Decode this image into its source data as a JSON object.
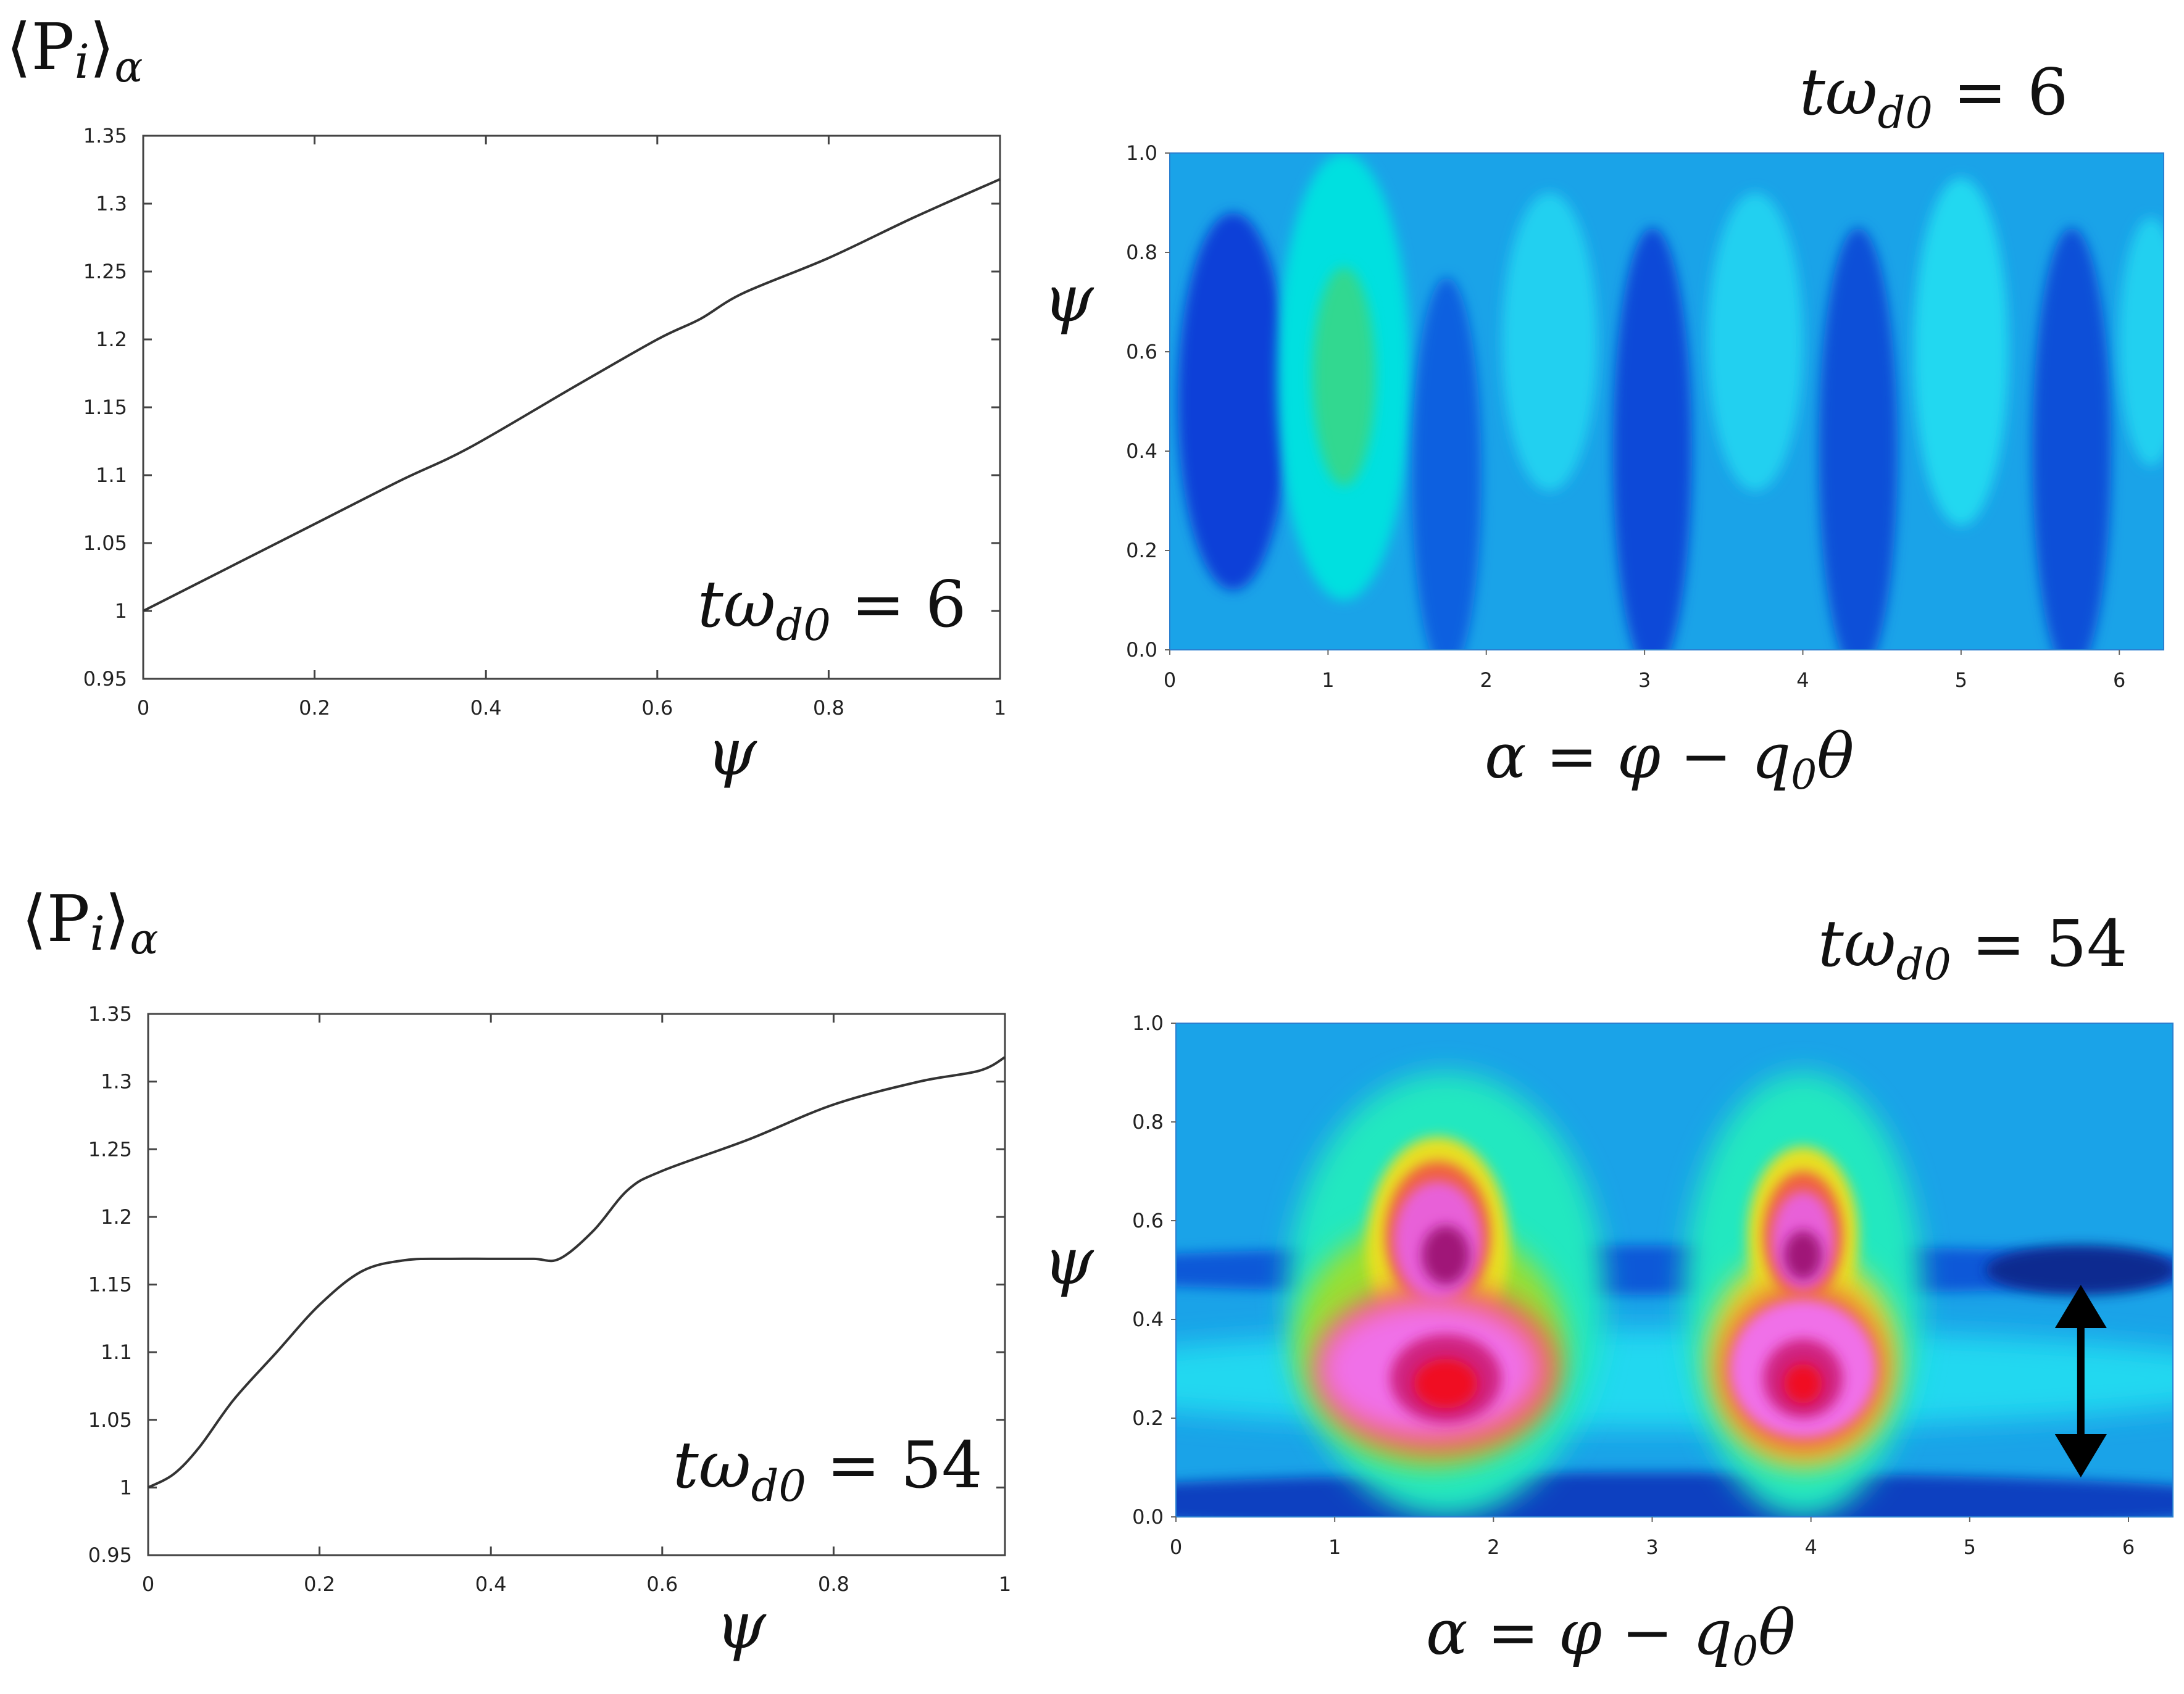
{
  "top_left": {
    "ylabel": "⟨P",
    "ylabel_sub": "i",
    "ylabel_end": "⟩",
    "ylabel_sub2": "α",
    "xlabel": "ψ",
    "annotation_main": "tω",
    "annotation_sub": "d0",
    "annotation_rest": " = 6"
  },
  "top_right": {
    "title_main": "tω",
    "title_sub": "d0",
    "title_rest": " = 6",
    "ylabel": "ψ",
    "xlabel_a": "α = φ − q",
    "xlabel_sub": "0",
    "xlabel_b": "θ"
  },
  "bottom_left": {
    "ylabel": "⟨P",
    "ylabel_sub": "i",
    "ylabel_end": "⟩",
    "ylabel_sub2": "α",
    "xlabel": "ψ",
    "annotation_main": "tω",
    "annotation_sub": "d0",
    "annotation_rest": " = 54"
  },
  "bottom_right": {
    "title_main": "tω",
    "title_sub": "d0",
    "title_rest": " = 54",
    "ylabel": "ψ",
    "xlabel_a": "α = φ − q",
    "xlabel_sub": "0",
    "xlabel_b": "θ"
  },
  "colors": {
    "line": "#333333",
    "axis": "#444444",
    "arrow": "#000000"
  },
  "chart_data": [
    {
      "type": "line",
      "id": "pressure-t6",
      "xlabel": "ψ",
      "ylabel": "⟨P_i⟩_α",
      "xlim": [
        0,
        1
      ],
      "ylim": [
        0.95,
        1.35
      ],
      "xticks": [
        0,
        0.2,
        0.4,
        0.6,
        0.8,
        1
      ],
      "xtick_labels": [
        "0",
        "0.2",
        "0.4",
        "0.6",
        "0.8",
        "1"
      ],
      "yticks": [
        0.95,
        1,
        1.05,
        1.1,
        1.15,
        1.2,
        1.25,
        1.3,
        1.35
      ],
      "ytick_labels": [
        "0.95",
        "1",
        "1.05",
        "1.1",
        "1.15",
        "1.2",
        "1.25",
        "1.3",
        "1.35"
      ],
      "x": [
        0,
        0.1,
        0.2,
        0.3,
        0.38,
        0.5,
        0.6,
        0.65,
        0.7,
        0.8,
        0.9,
        1.0
      ],
      "y": [
        1.0,
        1.032,
        1.064,
        1.096,
        1.12,
        1.164,
        1.2,
        1.215,
        1.234,
        1.26,
        1.29,
        1.318
      ],
      "annotation": "tω_d0 = 6"
    },
    {
      "type": "heatmap",
      "id": "contour-t6",
      "title": "tω_d0 = 6",
      "xlabel": "α = φ − q_0θ",
      "ylabel": "ψ",
      "xlim": [
        0,
        6.28
      ],
      "ylim": [
        0,
        1
      ],
      "xticks": [
        0,
        1,
        2,
        3,
        4,
        5,
        6
      ],
      "xtick_labels": [
        "0",
        "1",
        "2",
        "3",
        "4",
        "5",
        "6"
      ],
      "yticks": [
        0,
        0.2,
        0.4,
        0.6,
        0.8,
        1.0
      ],
      "ytick_labels": [
        "0.0",
        "0.2",
        "0.4",
        "0.6",
        "0.8",
        "1.0"
      ],
      "background": "#1aa3e8",
      "blobs": [
        {
          "alpha": 0.4,
          "psi": 0.5,
          "ra": 0.35,
          "rpsi": 0.38,
          "color": "#0a3fd8"
        },
        {
          "alpha": 1.1,
          "psi": 0.55,
          "ra": 0.42,
          "rpsi": 0.45,
          "color": "#00e0e0"
        },
        {
          "alpha": 1.1,
          "psi": 0.55,
          "ra": 0.2,
          "rpsi": 0.22,
          "color": "#30d890"
        },
        {
          "alpha": 1.75,
          "psi": 0.35,
          "ra": 0.22,
          "rpsi": 0.4,
          "color": "#1060e0"
        },
        {
          "alpha": 2.4,
          "psi": 0.62,
          "ra": 0.3,
          "rpsi": 0.3,
          "color": "#20d0f0"
        },
        {
          "alpha": 3.05,
          "psi": 0.4,
          "ra": 0.25,
          "rpsi": 0.45,
          "color": "#0a48d8"
        },
        {
          "alpha": 3.7,
          "psi": 0.62,
          "ra": 0.3,
          "rpsi": 0.3,
          "color": "#20d0f0"
        },
        {
          "alpha": 4.35,
          "psi": 0.4,
          "ra": 0.25,
          "rpsi": 0.45,
          "color": "#0a50d8"
        },
        {
          "alpha": 5.0,
          "psi": 0.6,
          "ra": 0.3,
          "rpsi": 0.35,
          "color": "#20d8f0"
        },
        {
          "alpha": 5.7,
          "psi": 0.4,
          "ra": 0.25,
          "rpsi": 0.45,
          "color": "#0a50d8"
        },
        {
          "alpha": 6.2,
          "psi": 0.62,
          "ra": 0.2,
          "rpsi": 0.25,
          "color": "#20d0f0"
        }
      ]
    },
    {
      "type": "line",
      "id": "pressure-t54",
      "xlabel": "ψ",
      "ylabel": "⟨P_i⟩_α",
      "xlim": [
        0,
        1
      ],
      "ylim": [
        0.95,
        1.35
      ],
      "xticks": [
        0,
        0.2,
        0.4,
        0.6,
        0.8,
        1
      ],
      "xtick_labels": [
        "0",
        "0.2",
        "0.4",
        "0.6",
        "0.8",
        "1"
      ],
      "yticks": [
        0.95,
        1,
        1.05,
        1.1,
        1.15,
        1.2,
        1.25,
        1.3,
        1.35
      ],
      "ytick_labels": [
        "0.95",
        "1",
        "1.05",
        "1.1",
        "1.15",
        "1.2",
        "1.25",
        "1.3",
        "1.35"
      ],
      "x": [
        0,
        0.03,
        0.06,
        0.1,
        0.15,
        0.2,
        0.25,
        0.3,
        0.35,
        0.4,
        0.45,
        0.48,
        0.52,
        0.56,
        0.6,
        0.7,
        0.8,
        0.9,
        0.97,
        1.0
      ],
      "y": [
        1.0,
        1.01,
        1.03,
        1.065,
        1.1,
        1.135,
        1.16,
        1.168,
        1.169,
        1.169,
        1.169,
        1.169,
        1.19,
        1.22,
        1.234,
        1.257,
        1.283,
        1.3,
        1.308,
        1.318
      ],
      "annotation": "tω_d0 = 54"
    },
    {
      "type": "heatmap",
      "id": "contour-t54",
      "title": "tω_d0 = 54",
      "xlabel": "α = φ − q_0θ",
      "ylabel": "ψ",
      "xlim": [
        0,
        6.28
      ],
      "ylim": [
        0,
        1
      ],
      "xticks": [
        0,
        1,
        2,
        3,
        4,
        5,
        6
      ],
      "xtick_labels": [
        "0",
        "1",
        "2",
        "3",
        "4",
        "5",
        "6"
      ],
      "yticks": [
        0,
        0.2,
        0.4,
        0.6,
        0.8,
        1.0
      ],
      "ytick_labels": [
        "0.0",
        "0.2",
        "0.4",
        "0.6",
        "0.8",
        "1.0"
      ],
      "background": "#1aa3e8",
      "blobs": [
        {
          "alpha": 3.0,
          "psi": 0.5,
          "ra": 4.0,
          "rpsi": 0.05,
          "color": "#0a58d8"
        },
        {
          "alpha": 5.7,
          "psi": 0.5,
          "ra": 0.6,
          "rpsi": 0.05,
          "color": "#082a90"
        },
        {
          "alpha": 3.0,
          "psi": 0.03,
          "ra": 4.0,
          "rpsi": 0.06,
          "color": "#0a40c0"
        },
        {
          "alpha": 3.0,
          "psi": 0.28,
          "ra": 4.0,
          "rpsi": 0.1,
          "color": "#20d8f0"
        },
        {
          "alpha": 1.7,
          "psi": 0.45,
          "ra": 1.0,
          "rpsi": 0.45,
          "color": "#20e8c0"
        },
        {
          "alpha": 3.95,
          "psi": 0.45,
          "ra": 0.75,
          "rpsi": 0.45,
          "color": "#20e8c0"
        },
        {
          "alpha": 1.6,
          "psi": 0.35,
          "ra": 0.85,
          "rpsi": 0.25,
          "color": "#9ae030"
        },
        {
          "alpha": 1.65,
          "psi": 0.55,
          "ra": 0.45,
          "rpsi": 0.22,
          "color": "#e8e020"
        },
        {
          "alpha": 3.95,
          "psi": 0.32,
          "ra": 0.6,
          "rpsi": 0.22,
          "color": "#e8e020"
        },
        {
          "alpha": 3.95,
          "psi": 0.57,
          "ra": 0.35,
          "rpsi": 0.18,
          "color": "#e8e020"
        },
        {
          "alpha": 1.65,
          "psi": 0.3,
          "ra": 0.75,
          "rpsi": 0.17,
          "color": "#f06040"
        },
        {
          "alpha": 1.65,
          "psi": 0.57,
          "ra": 0.33,
          "rpsi": 0.15,
          "color": "#f06040"
        },
        {
          "alpha": 3.95,
          "psi": 0.3,
          "ra": 0.52,
          "rpsi": 0.17,
          "color": "#f06040"
        },
        {
          "alpha": 3.95,
          "psi": 0.57,
          "ra": 0.25,
          "rpsi": 0.13,
          "color": "#f06040"
        },
        {
          "alpha": 1.6,
          "psi": 0.3,
          "ra": 0.7,
          "rpsi": 0.14,
          "color": "#f070e8"
        },
        {
          "alpha": 1.65,
          "psi": 0.56,
          "ra": 0.28,
          "rpsi": 0.12,
          "color": "#e860d8"
        },
        {
          "alpha": 3.95,
          "psi": 0.3,
          "ra": 0.46,
          "rpsi": 0.14,
          "color": "#f070e8"
        },
        {
          "alpha": 3.95,
          "psi": 0.56,
          "ra": 0.2,
          "rpsi": 0.1,
          "color": "#e860d8"
        },
        {
          "alpha": 1.7,
          "psi": 0.28,
          "ra": 0.35,
          "rpsi": 0.09,
          "color": "#d02080"
        },
        {
          "alpha": 1.7,
          "psi": 0.27,
          "ra": 0.2,
          "rpsi": 0.05,
          "color": "#f01020"
        },
        {
          "alpha": 1.7,
          "psi": 0.53,
          "ra": 0.15,
          "rpsi": 0.06,
          "color": "#a01878"
        },
        {
          "alpha": 3.95,
          "psi": 0.28,
          "ra": 0.25,
          "rpsi": 0.08,
          "color": "#d02080"
        },
        {
          "alpha": 3.95,
          "psi": 0.27,
          "ra": 0.12,
          "rpsi": 0.04,
          "color": "#f01020"
        },
        {
          "alpha": 3.95,
          "psi": 0.53,
          "ra": 0.12,
          "rpsi": 0.05,
          "color": "#a01878"
        }
      ],
      "arrow": {
        "alpha": 5.7,
        "psi_from": 0.08,
        "psi_to": 0.47
      }
    }
  ]
}
